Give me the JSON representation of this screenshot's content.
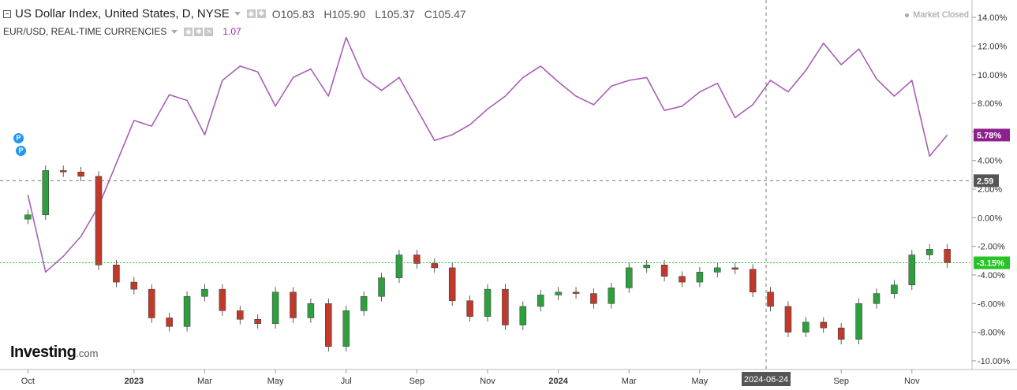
{
  "header": {
    "title": "US Dollar Index, United States, D, NYSE",
    "open": "O105.83",
    "high": "H105.90",
    "low": "L105.37",
    "close": "C105.47",
    "secondary_title": "EUR/USD, REAL-TIME CURRENCIES",
    "secondary_value": "1.07"
  },
  "status": "Market Closed",
  "logo": {
    "brand": "Investing",
    "domain": ".com"
  },
  "markers": [
    "P",
    "P"
  ],
  "crosshair": {
    "date_label": "2024-06-24",
    "price_label": "2.59"
  },
  "colors": {
    "purple": "#a75fb5",
    "up_candle": "#2e9e3f",
    "down_candle": "#c0392b",
    "green_line": "#27c427",
    "axis_text": "#333333"
  },
  "chart_data": {
    "type": "line",
    "y_axis": {
      "unit": "%",
      "ticks": [
        "14.00%",
        "12.00%",
        "10.00%",
        "8.00%",
        "6.00%",
        "4.00%",
        "2.00%",
        "0.00%",
        "-2.00%",
        "-4.00%",
        "-6.00%",
        "-8.00%",
        "-10.00%"
      ],
      "tick_values": [
        14,
        12,
        10,
        8,
        6,
        4,
        2,
        0,
        -2,
        -4,
        -6,
        -8,
        -10
      ],
      "range": [
        -10.5,
        15
      ]
    },
    "x_axis": {
      "labels": [
        "Oct",
        "2023",
        "Mar",
        "May",
        "Jul",
        "Sep",
        "Nov",
        "2024",
        "Mar",
        "May",
        "Sep",
        "Nov"
      ],
      "bold_labels": [
        "2023",
        "2024"
      ],
      "label_index": [
        0,
        3,
        5,
        7,
        9,
        11,
        13,
        15,
        17,
        19,
        23,
        25
      ],
      "range": [
        -0.7,
        26.7
      ]
    },
    "series": [
      {
        "name": "EUR/USD, REAL-TIME CURRENCIES",
        "style": "line",
        "last_label": "5.78%",
        "x": [
          0,
          0.5,
          1,
          1.5,
          2,
          2.5,
          3,
          3.5,
          4,
          4.5,
          5,
          5.5,
          6,
          6.5,
          7,
          7.5,
          8,
          8.5,
          9,
          9.5,
          10,
          10.5,
          11,
          11.5,
          12,
          12.5,
          13,
          13.5,
          14,
          14.5,
          15,
          15.5,
          16,
          16.5,
          17,
          17.5,
          18,
          18.5,
          19,
          19.5,
          20,
          20.5,
          21,
          21.5,
          22,
          22.5,
          23,
          23.5,
          24,
          24.5,
          25,
          25.5,
          26
        ],
        "y": [
          1.6,
          -3.8,
          -2.7,
          -1.3,
          0.8,
          3.8,
          6.8,
          6.4,
          8.6,
          8.2,
          5.8,
          9.6,
          10.6,
          10.2,
          7.8,
          9.8,
          10.4,
          8.5,
          12.6,
          9.8,
          8.9,
          9.8,
          7.6,
          5.4,
          5.8,
          6.5,
          7.6,
          8.5,
          9.8,
          10.6,
          9.5,
          8.5,
          7.9,
          9.2,
          9.6,
          9.8,
          7.5,
          7.8,
          8.8,
          9.4,
          7.0,
          7.9,
          9.6,
          8.8,
          10.3,
          12.2,
          10.7,
          11.8,
          9.7,
          8.5,
          9.6,
          4.3,
          5.78
        ]
      },
      {
        "name": "US Dollar Index, United States, D, NYSE",
        "style": "candlestick",
        "last_label": "-3.15%",
        "x": [
          0,
          0.5,
          1,
          1.5,
          2,
          2.5,
          3,
          3.5,
          4,
          4.5,
          5,
          5.5,
          6,
          6.5,
          7,
          7.5,
          8,
          8.5,
          9,
          9.5,
          10,
          10.5,
          11,
          11.5,
          12,
          12.5,
          13,
          13.5,
          14,
          14.5,
          15,
          15.5,
          16,
          16.5,
          17,
          17.5,
          18,
          18.5,
          19,
          19.5,
          20,
          20.5,
          21,
          21.5,
          22,
          22.5,
          23,
          23.5,
          24,
          24.5,
          25,
          25.5,
          26
        ],
        "y": [
          0.2,
          3.3,
          3.2,
          2.9,
          -3.3,
          -4.5,
          -5.0,
          -7.0,
          -7.6,
          -5.5,
          -5.0,
          -6.5,
          -7.1,
          -7.4,
          -5.2,
          -7.0,
          -6.0,
          -9.0,
          -6.5,
          -5.5,
          -4.2,
          -2.6,
          -3.2,
          -3.5,
          -5.8,
          -6.9,
          -5.0,
          -7.5,
          -6.2,
          -5.4,
          -5.2,
          -5.3,
          -6.0,
          -4.9,
          -3.5,
          -3.3,
          -4.1,
          -4.5,
          -3.8,
          -3.5,
          -3.6,
          -5.2,
          -6.2,
          -8.0,
          -7.3,
          -7.7,
          -8.5,
          -6.0,
          -5.3,
          -4.7,
          -2.6,
          -2.2,
          -3.15
        ]
      }
    ]
  }
}
